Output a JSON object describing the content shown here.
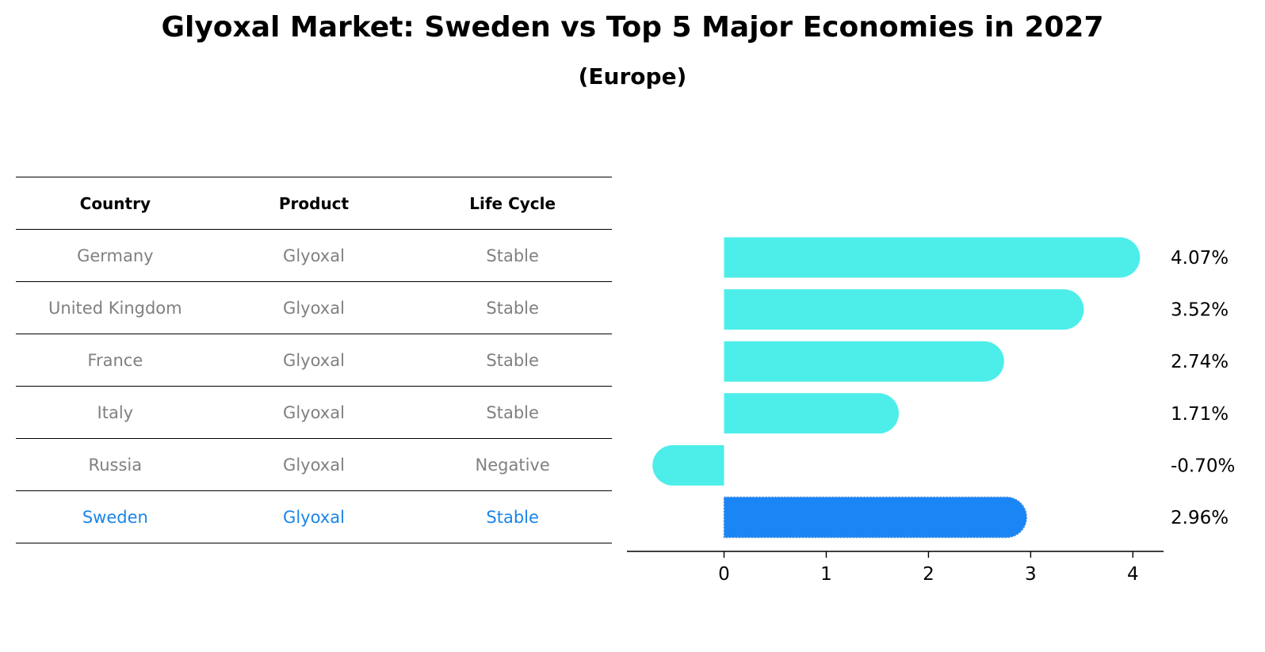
{
  "title": "Glyoxal Market: Sweden vs Top 5 Major Economies in 2027",
  "subtitle": "(Europe)",
  "table": {
    "headers": [
      "Country",
      "Product",
      "Life Cycle"
    ],
    "rows": [
      [
        "Germany",
        "Glyoxal",
        "Stable"
      ],
      [
        "United Kingdom",
        "Glyoxal",
        "Stable"
      ],
      [
        "France",
        "Glyoxal",
        "Stable"
      ],
      [
        "Italy",
        "Glyoxal",
        "Stable"
      ],
      [
        "Russia",
        "Glyoxal",
        "Negative"
      ],
      [
        "Sweden",
        "Glyoxal",
        "Stable"
      ]
    ],
    "highlight_row": 5
  },
  "chart_data": {
    "type": "bar",
    "orientation": "horizontal",
    "categories": [
      "Germany",
      "United Kingdom",
      "France",
      "Italy",
      "Russia",
      "Sweden"
    ],
    "values": [
      4.07,
      3.52,
      2.74,
      1.71,
      -0.7,
      2.96
    ],
    "value_labels": [
      "4.07%",
      "3.52%",
      "2.74%",
      "1.71%",
      "-0.70%",
      "2.96%"
    ],
    "xticks": [
      "0",
      "1",
      "2",
      "3",
      "4"
    ],
    "xlim": [
      -0.95,
      4.3
    ],
    "colors": {
      "default": "#4deeea",
      "highlight": "#1a85f5"
    },
    "highlight_index": 5,
    "grid": false
  }
}
